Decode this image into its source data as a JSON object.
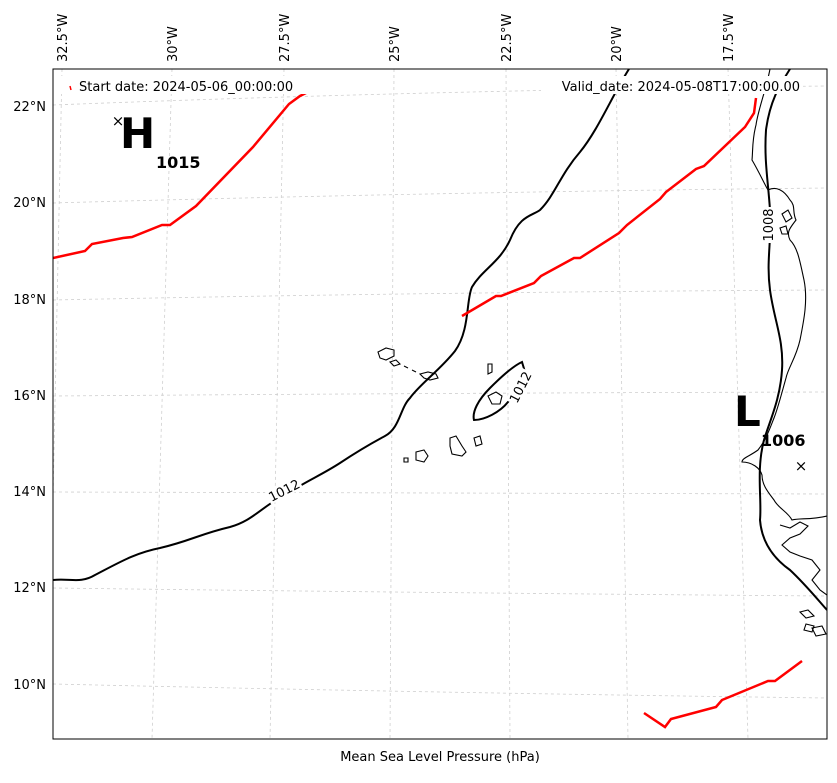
{
  "map": {
    "xlabel": "Mean Sea Level Pressure (hPa)",
    "start_date": "Start date: 2024-05-06_00:00:00",
    "valid_date": "Valid_date: 2024-05-08T17:00:00.00",
    "lon_ticks": [
      "32.5°W",
      "30°W",
      "27.5°W",
      "25°W",
      "22.5°W",
      "20°W",
      "17.5°W"
    ],
    "lat_ticks": [
      "22°N",
      "20°N",
      "18°N",
      "16°N",
      "14°N",
      "12°N",
      "10°N"
    ],
    "colors": {
      "isobar": "#000000",
      "highlight_isobar": "#ff0000",
      "grid": "#cfcfcf",
      "frame": "#000000"
    },
    "grid": true,
    "pressure_centers": [
      {
        "type": "high",
        "letter": "H",
        "value": "1015"
      },
      {
        "type": "low",
        "letter": "L",
        "value": "1006"
      }
    ],
    "contour_labels": [
      "1012",
      "1012",
      "1008"
    ]
  }
}
